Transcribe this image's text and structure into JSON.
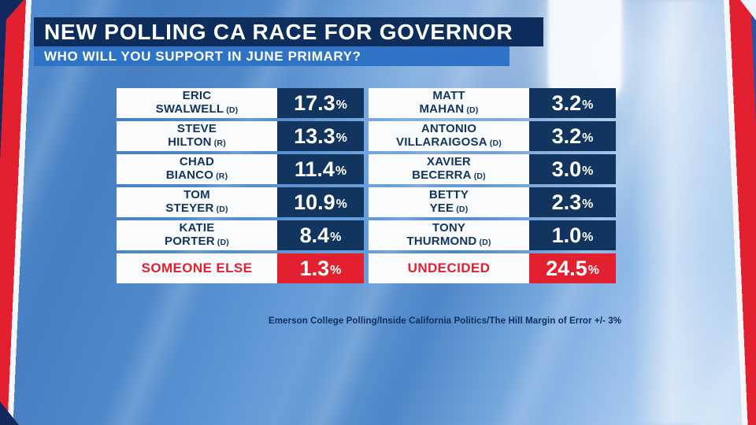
{
  "header": {
    "title": "NEW POLLING CA RACE FOR GOVERNOR",
    "subtitle": "WHO WILL YOU SUPPORT IN JUNE PRIMARY?"
  },
  "poll": {
    "percent": "%",
    "left": [
      {
        "first": "ERIC",
        "last": "SWALWELL",
        "party": "(D)",
        "value": "17.3"
      },
      {
        "first": "STEVE",
        "last": "HILTON",
        "party": "(R)",
        "value": "13.3"
      },
      {
        "first": "CHAD",
        "last": "BIANCO",
        "party": "(R)",
        "value": "11.4"
      },
      {
        "first": "TOM",
        "last": "STEYER",
        "party": "(D)",
        "value": "10.9"
      },
      {
        "first": "KATIE",
        "last": "PORTER",
        "party": "(D)",
        "value": "8.4"
      }
    ],
    "left_other": {
      "label": "SOMEONE ELSE",
      "value": "1.3"
    },
    "right": [
      {
        "first": "MATT",
        "last": "MAHAN",
        "party": "(D)",
        "value": "3.2"
      },
      {
        "first": "ANTONIO",
        "last": "VILLARAIGOSA",
        "party": "(D)",
        "value": "3.2"
      },
      {
        "first": "XAVIER",
        "last": "BECERRA",
        "party": "(D)",
        "value": "3.0"
      },
      {
        "first": "BETTY",
        "last": "YEE",
        "party": "(D)",
        "value": "2.3"
      },
      {
        "first": "TONY",
        "last": "THURMOND",
        "party": "(D)",
        "value": "1.0"
      }
    ],
    "right_other": {
      "label": "UNDECIDED",
      "value": "24.5"
    }
  },
  "footer": {
    "source": "Emerson College Polling/Inside California Politics/The Hill Margin of Error +/- 3%"
  },
  "colors": {
    "navy": "#123560",
    "header_navy": "#0d2e5c",
    "bar_blue": "#2e73c6",
    "red": "#e32030",
    "name_box_bg": "#f9fbfd"
  },
  "chart_data": {
    "type": "table",
    "title": "NEW POLLING CA RACE FOR GOVERNOR",
    "subtitle": "WHO WILL YOU SUPPORT IN JUNE PRIMARY?",
    "unit": "percent",
    "categories": [
      "Eric Swalwell (D)",
      "Steve Hilton (R)",
      "Chad Bianco (R)",
      "Tom Steyer (D)",
      "Katie Porter (D)",
      "Someone Else",
      "Matt Mahan (D)",
      "Antonio Villaraigosa (D)",
      "Xavier Becerra (D)",
      "Betty Yee (D)",
      "Tony Thurmond (D)",
      "Undecided"
    ],
    "values": [
      17.3,
      13.3,
      11.4,
      10.9,
      8.4,
      1.3,
      3.2,
      3.2,
      3.0,
      2.3,
      1.0,
      24.5
    ],
    "source": "Emerson College Polling/Inside California Politics/The Hill Margin of Error +/- 3%"
  }
}
